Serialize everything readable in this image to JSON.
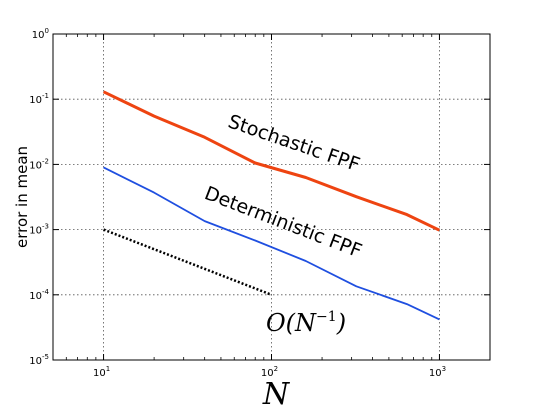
{
  "chart_data": {
    "type": "line",
    "xscale": "log",
    "yscale": "log",
    "xlim": [
      5,
      2000
    ],
    "ylim": [
      1e-05,
      1
    ],
    "xlabel": "N",
    "ylabel": "error in mean",
    "grid": true,
    "x_ticks": [
      {
        "base": "10",
        "exp": "1",
        "value": 10
      },
      {
        "base": "10",
        "exp": "2",
        "value": 100
      },
      {
        "base": "10",
        "exp": "3",
        "value": 1000
      }
    ],
    "y_ticks": [
      {
        "base": "10",
        "exp": "0",
        "value": 1
      },
      {
        "base": "10",
        "exp": "-1",
        "value": 0.1
      },
      {
        "base": "10",
        "exp": "-2",
        "value": 0.01
      },
      {
        "base": "10",
        "exp": "-3",
        "value": 0.001
      },
      {
        "base": "10",
        "exp": "-4",
        "value": 0.0001
      },
      {
        "base": "10",
        "exp": "-5",
        "value": 1e-05
      }
    ],
    "series": [
      {
        "name": "Stochastic FPF",
        "color": "#ee4411",
        "x": [
          10,
          20,
          40,
          80,
          160,
          320,
          640,
          1000
        ],
        "y": [
          0.13,
          0.055,
          0.026,
          0.0105,
          0.0063,
          0.0032,
          0.0017,
          0.00098
        ]
      },
      {
        "name": "Deterministic FPF",
        "color": "#1f4fe0",
        "x": [
          10,
          20,
          40,
          80,
          160,
          320,
          640,
          1000
        ],
        "y": [
          0.009,
          0.0037,
          0.00135,
          0.00068,
          0.00033,
          0.000135,
          7.2e-05,
          4.2e-05
        ]
      },
      {
        "name": "",
        "color": "#000000",
        "style": "dotted",
        "x": [
          10,
          100
        ],
        "y": [
          0.001,
          0.0001
        ]
      }
    ],
    "annotations": [
      {
        "base": "O(N",
        "exp": "−1",
        "close": ")"
      }
    ]
  }
}
